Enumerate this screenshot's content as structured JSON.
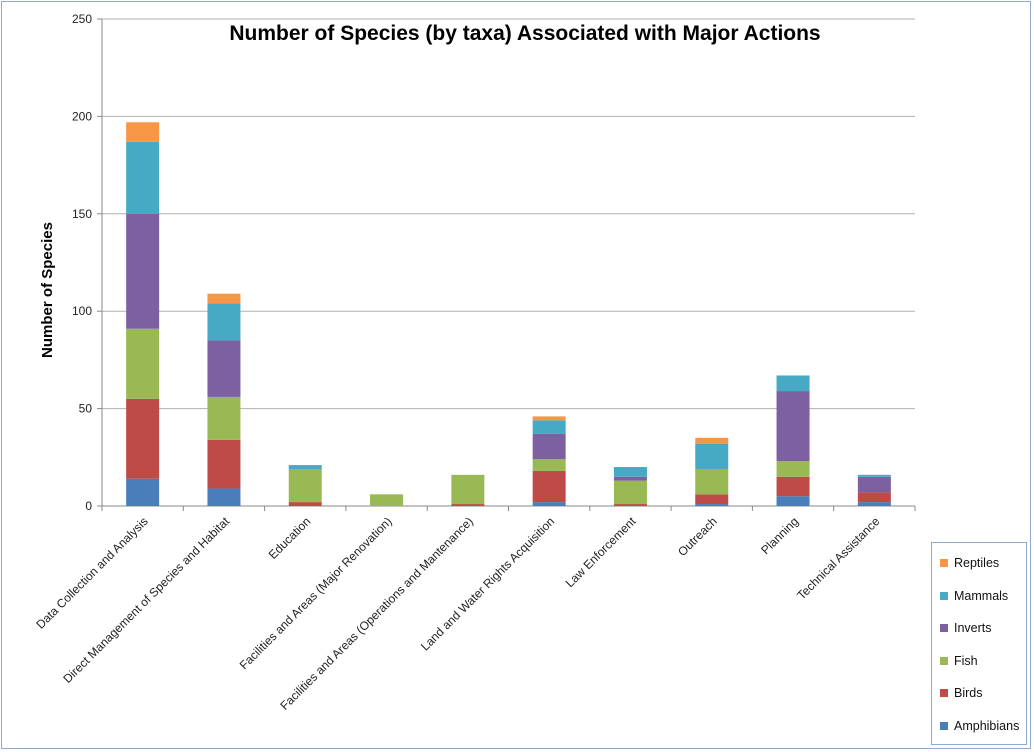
{
  "chart_data": {
    "type": "bar",
    "stacked": true,
    "title": "Number of Species (by taxa) Associated with Major Actions",
    "ylabel": "Number of Species",
    "xlabel": "",
    "ylim": [
      0,
      250
    ],
    "yticks": [
      "0",
      "50",
      "100",
      "150",
      "200",
      "250"
    ],
    "grid": true,
    "legend_position": "bottom-right",
    "categories": [
      "Data Collection and Analysis",
      "Direct Management of Species and Habitat",
      "Education",
      "Facilities and Areas (Major Renovation)",
      "Facilities and Areas (Operations and Mantenance)",
      "Land and Water Rights Acquisition",
      "Law Enforcement",
      "Outreach",
      "Planning",
      "Technical Assistance"
    ],
    "series": [
      {
        "name": "Amphibians",
        "color": "#4a7ebb",
        "values": [
          14,
          9,
          0,
          0,
          0,
          2,
          0,
          1,
          5,
          2
        ]
      },
      {
        "name": "Birds",
        "color": "#be4b48",
        "values": [
          41,
          25,
          2,
          0,
          1,
          16,
          1,
          5,
          10,
          5
        ]
      },
      {
        "name": "Fish",
        "color": "#98b954",
        "values": [
          36,
          22,
          17,
          6,
          15,
          6,
          12,
          13,
          8,
          0
        ]
      },
      {
        "name": "Inverts",
        "color": "#7d60a0",
        "values": [
          59,
          29,
          0,
          0,
          0,
          13,
          2,
          0,
          36,
          8
        ]
      },
      {
        "name": "Mammals",
        "color": "#46aac5",
        "values": [
          37,
          19,
          2,
          0,
          0,
          7,
          5,
          13,
          8,
          1
        ]
      },
      {
        "name": "Reptiles",
        "color": "#f79646",
        "values": [
          10,
          5,
          0,
          0,
          0,
          2,
          0,
          3,
          0,
          0
        ]
      }
    ]
  }
}
